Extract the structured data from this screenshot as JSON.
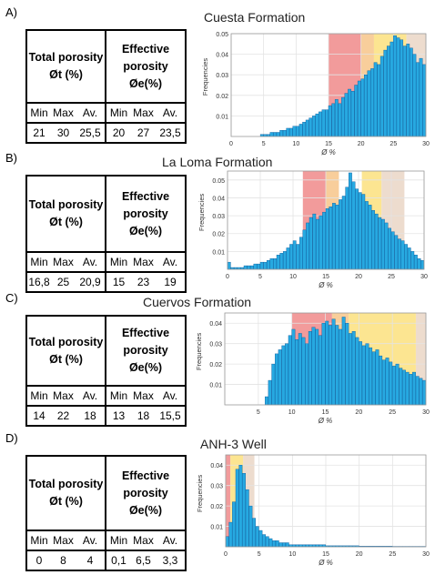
{
  "colors": {
    "bar": "#27a9e1",
    "bar_edge": "#0b5a9c",
    "red": "#f08a8a",
    "orange": "#f7c58a",
    "yellow": "#fbe07e",
    "tan": "#ead6c6",
    "grid": "#e3e3e3"
  },
  "table_labels": {
    "total_title": "Total porosity",
    "total_sym": "Øt (%)",
    "eff_title_1": "Effective",
    "eff_title_2": "porosity",
    "eff_sym": "Øe(%)",
    "min": "Min",
    "max": "Max",
    "av": "Av."
  },
  "panels": [
    {
      "letter": "A)",
      "title": "Cuesta Formation",
      "values": [
        "21",
        "30",
        "25,5",
        "20",
        "27",
        "23,5"
      ]
    },
    {
      "letter": "B)",
      "title": "La Loma Formation",
      "values": [
        "16,8",
        "25",
        "20,9",
        "15",
        "23",
        "19"
      ]
    },
    {
      "letter": "C)",
      "title": "Cuervos Formation",
      "values": [
        "14",
        "22",
        "18",
        "13",
        "18",
        "15,5"
      ]
    },
    {
      "letter": "D)",
      "title": "ANH-3 Well",
      "values": [
        "0",
        "8",
        "4",
        "0,1",
        "6,5",
        "3,3"
      ]
    }
  ],
  "chart_data": [
    {
      "type": "bar",
      "title": "Cuesta Formation",
      "xlabel": "Ø %",
      "ylabel": "Frequencies",
      "xlim": [
        0,
        30
      ],
      "ylim": [
        0,
        0.05
      ],
      "yticks": [
        "0.01",
        "0.02",
        "0.03",
        "0.04",
        "0.05"
      ],
      "xticks": [
        "0",
        "5",
        "10",
        "15",
        "20",
        "25",
        "30"
      ],
      "bands": [
        {
          "from": 15,
          "to": 20,
          "color": "red"
        },
        {
          "from": 20,
          "to": 22,
          "color": "orange"
        },
        {
          "from": 22,
          "to": 27,
          "color": "yellow"
        },
        {
          "from": 27,
          "to": 30,
          "color": "tan"
        }
      ],
      "bin_start": 4.5,
      "bin_width": 0.5,
      "values": [
        0.001,
        0.001,
        0.001,
        0.002,
        0.002,
        0.002,
        0.003,
        0.003,
        0.004,
        0.004,
        0.005,
        0.005,
        0.006,
        0.007,
        0.008,
        0.009,
        0.01,
        0.011,
        0.012,
        0.013,
        0.013,
        0.015,
        0.016,
        0.018,
        0.016,
        0.019,
        0.021,
        0.023,
        0.022,
        0.025,
        0.027,
        0.028,
        0.03,
        0.032,
        0.033,
        0.036,
        0.035,
        0.039,
        0.042,
        0.044,
        0.046,
        0.049,
        0.048,
        0.047,
        0.044,
        0.045,
        0.043,
        0.04,
        0.036,
        0.038,
        0.035,
        0.033
      ]
    },
    {
      "type": "bar",
      "title": "La Loma Formation",
      "xlabel": "Ø %",
      "ylabel": "Frequencies",
      "xlim": [
        0,
        30
      ],
      "ylim": [
        0,
        0.055
      ],
      "yticks": [
        "0.01",
        "0.02",
        "0.03",
        "0.04",
        "0.05"
      ],
      "xticks": [
        "0",
        "5",
        "10",
        "15",
        "20",
        "25",
        "30"
      ],
      "bands": [
        {
          "from": 11.5,
          "to": 15,
          "color": "red"
        },
        {
          "from": 15,
          "to": 17,
          "color": "orange"
        },
        {
          "from": 20.5,
          "to": 23.5,
          "color": "yellow"
        },
        {
          "from": 23.5,
          "to": 27,
          "color": "tan"
        }
      ],
      "bin_start": 0,
      "bin_width": 0.5,
      "values": [
        0.004,
        0.001,
        0.001,
        0.001,
        0.001,
        0.002,
        0.002,
        0.002,
        0.003,
        0.003,
        0.004,
        0.004,
        0.005,
        0.006,
        0.006,
        0.008,
        0.009,
        0.01,
        0.012,
        0.014,
        0.016,
        0.014,
        0.018,
        0.022,
        0.026,
        0.029,
        0.031,
        0.028,
        0.03,
        0.032,
        0.034,
        0.035,
        0.037,
        0.036,
        0.039,
        0.041,
        0.046,
        0.054,
        0.049,
        0.045,
        0.043,
        0.042,
        0.038,
        0.036,
        0.033,
        0.031,
        0.029,
        0.028,
        0.026,
        0.023,
        0.021,
        0.019,
        0.017,
        0.016,
        0.014,
        0.012,
        0.01,
        0.008,
        0.006,
        0.005
      ]
    },
    {
      "type": "bar",
      "title": "Cuervos Formation",
      "xlabel": "Ø %",
      "ylabel": "Frequencies",
      "xlim": [
        0,
        30
      ],
      "ylim": [
        0,
        0.045
      ],
      "yticks": [
        "0.01",
        "0.02",
        "0.03",
        "0.04"
      ],
      "xticks": [
        "5",
        "10",
        "15",
        "20",
        "25",
        "30"
      ],
      "bands": [
        {
          "from": 10,
          "to": 16,
          "color": "red"
        },
        {
          "from": 16,
          "to": 18.5,
          "color": "orange"
        },
        {
          "from": 18.5,
          "to": 28.5,
          "color": "yellow"
        },
        {
          "from": 28.5,
          "to": 30,
          "color": "tan"
        }
      ],
      "bin_start": 6,
      "bin_width": 0.5,
      "values": [
        0.004,
        0.012,
        0.02,
        0.025,
        0.027,
        0.029,
        0.03,
        0.034,
        0.037,
        0.032,
        0.035,
        0.033,
        0.03,
        0.036,
        0.038,
        0.037,
        0.034,
        0.04,
        0.041,
        0.039,
        0.042,
        0.039,
        0.037,
        0.043,
        0.04,
        0.035,
        0.036,
        0.033,
        0.031,
        0.029,
        0.03,
        0.028,
        0.026,
        0.027,
        0.024,
        0.022,
        0.023,
        0.021,
        0.019,
        0.02,
        0.018,
        0.017,
        0.016,
        0.015,
        0.016,
        0.014,
        0.013,
        0.012
      ]
    },
    {
      "type": "bar",
      "title": "ANH-3 Well",
      "xlabel": "Ø %",
      "ylabel": "Frequencies",
      "xlim": [
        0,
        30
      ],
      "ylim": [
        0,
        0.045
      ],
      "yticks": [
        "0.01",
        "0.02",
        "0.03",
        "0.04"
      ],
      "xticks": [
        "0",
        "5",
        "10",
        "15",
        "20",
        "25",
        "30"
      ],
      "bands": [
        {
          "from": 0,
          "to": 0.7,
          "color": "red"
        },
        {
          "from": 0.7,
          "to": 2.6,
          "color": "yellow"
        },
        {
          "from": 2.6,
          "to": 4.3,
          "color": "tan"
        }
      ],
      "bin_start": 0,
      "bin_width": 0.5,
      "values": [
        0.005,
        0.012,
        0.022,
        0.038,
        0.04,
        0.036,
        0.028,
        0.02,
        0.014,
        0.01,
        0.008,
        0.006,
        0.005,
        0.004,
        0.003,
        0.003,
        0.002,
        0.002,
        0.002,
        0.001,
        0.001,
        0.001,
        0.001,
        0.001,
        0.001,
        0.001,
        0.001,
        0.001,
        0.001,
        0.001,
        0.0005,
        0.0005,
        0.0005,
        0.0005,
        0.0005,
        0.0005,
        0.0005,
        0.0005,
        0.0005,
        0.0005,
        0.0003,
        0.0003,
        0.0003,
        0.0003,
        0.0003,
        0.0003,
        0.0003,
        0.0003,
        0.0003,
        0.0003,
        0.0002,
        0.0002,
        0.0002,
        0.0002,
        0.0002,
        0.0002,
        0.0002,
        0.0002,
        0.0002,
        0.0002
      ]
    }
  ]
}
